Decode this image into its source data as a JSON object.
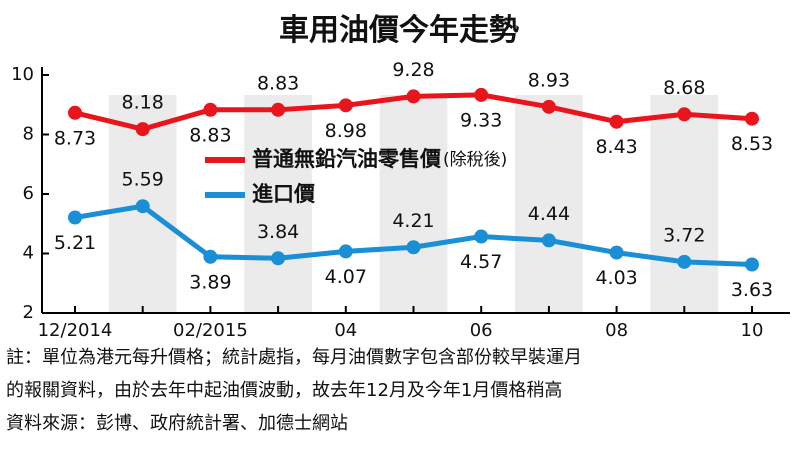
{
  "chart_data": {
    "type": "line",
    "title": "車用油價今年走勢",
    "categories": [
      "12/2014",
      null,
      "02/2015",
      null,
      "04",
      null,
      "06",
      null,
      "08",
      null,
      "10"
    ],
    "series": [
      {
        "name": "普通無鉛汽油零售價",
        "color": "#e8161c",
        "values": [
          8.73,
          8.18,
          8.83,
          8.83,
          8.98,
          9.28,
          9.33,
          8.93,
          8.43,
          8.68,
          8.53
        ]
      },
      {
        "name": "進口價",
        "color": "#1a8fd6",
        "values": [
          5.21,
          5.59,
          3.89,
          3.84,
          4.07,
          4.21,
          4.57,
          4.44,
          4.03,
          3.72,
          3.63
        ]
      }
    ],
    "legend_note": "(除稅後)",
    "ylim": [
      2,
      10
    ],
    "yticks": [
      2,
      4,
      6,
      8,
      10
    ],
    "note": [
      "註：單位為港元每升價格；統計處指，每月油價數字包含部份較早裝運月",
      "的報關資料，由於去年中起油價波動，故去年12月及今年1月價格稍高",
      "資料來源：彭博、政府統計署、加德士網站"
    ]
  }
}
